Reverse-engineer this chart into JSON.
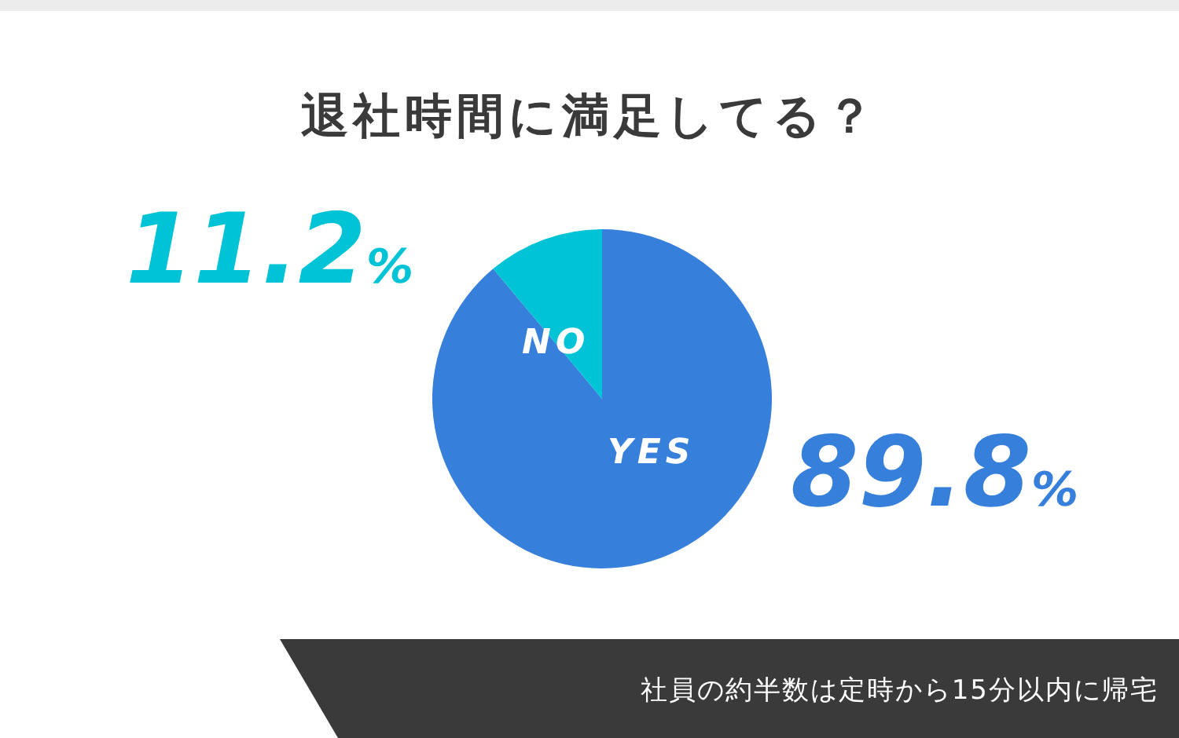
{
  "chart_data": {
    "type": "pie",
    "title": "退社時間に満足してる？",
    "categories": [
      "YES",
      "NO"
    ],
    "values": [
      89.8,
      11.2
    ],
    "colors": [
      "#367fdb",
      "#00c3d6"
    ],
    "value_labels": [
      "89.8%",
      "11.2%"
    ],
    "annotations": [
      "社員の約半数は定時から15分以内に帰宅"
    ]
  }
}
